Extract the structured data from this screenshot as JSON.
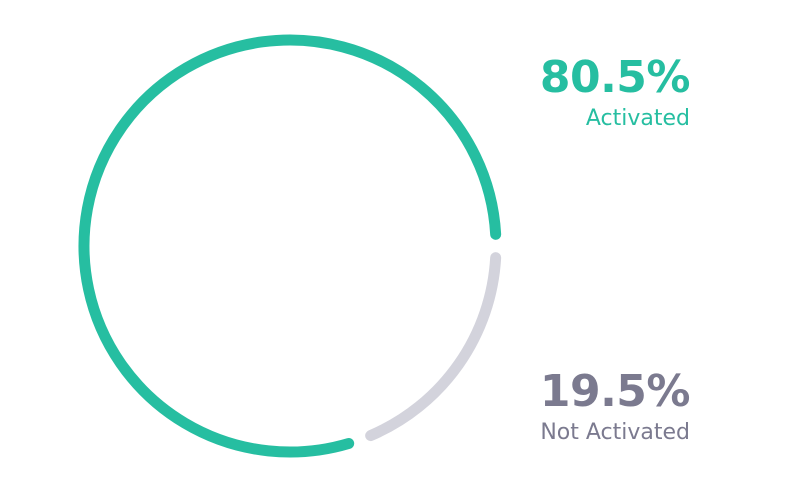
{
  "chart_data": {
    "type": "pie",
    "style": "ring",
    "categories": [
      "Activated",
      "Not Activated"
    ],
    "values": [
      80.5,
      19.5
    ],
    "value_labels": [
      "80.5%",
      "19.5%"
    ],
    "colors": [
      "#26bea1",
      "#d3d3dc"
    ],
    "label_colors": [
      "#26bea1",
      "#7b7a8f"
    ],
    "legend": "right"
  }
}
